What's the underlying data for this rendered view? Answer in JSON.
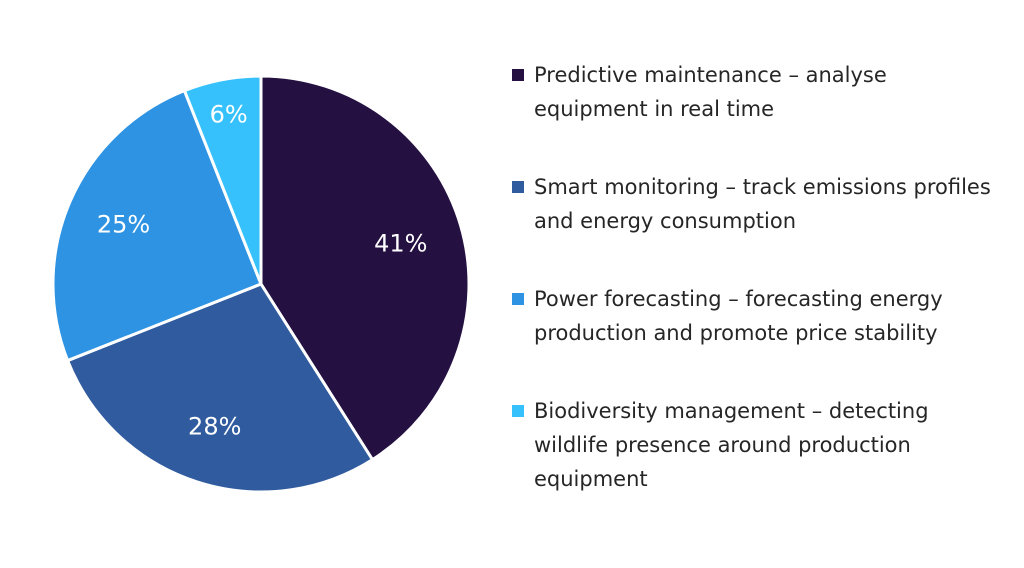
{
  "chart_data": {
    "type": "pie",
    "title": "",
    "start_angle_deg": 0,
    "direction": "clockwise",
    "slices": [
      {
        "label": "Predictive maintenance – analyse equipment in real time",
        "value": 41,
        "display": "41%",
        "color": "#241041"
      },
      {
        "label": "Smart monitoring – track emissions profiles and energy consumption",
        "value": 28,
        "display": "28%",
        "color": "#305C9F"
      },
      {
        "label": "Power forecasting – forecasting energy production and promote price stability",
        "value": 25,
        "display": "25%",
        "color": "#2E93E2"
      },
      {
        "label": "Biodiversity management – detecting wildlife presence around production equipment",
        "value": 6,
        "display": "6%",
        "color": "#36C1FC"
      }
    ],
    "legend_position": "right"
  },
  "legend": {
    "items": [
      {
        "text": "Predictive maintenance – analyse equipment in real time"
      },
      {
        "text": "Smart monitoring – track emissions profiles and energy consumption"
      },
      {
        "text": "Power forecasting – forecasting energy production and promote price stability"
      },
      {
        "text": "Biodiversity management – detecting wildlife presence around production equipment"
      }
    ]
  }
}
